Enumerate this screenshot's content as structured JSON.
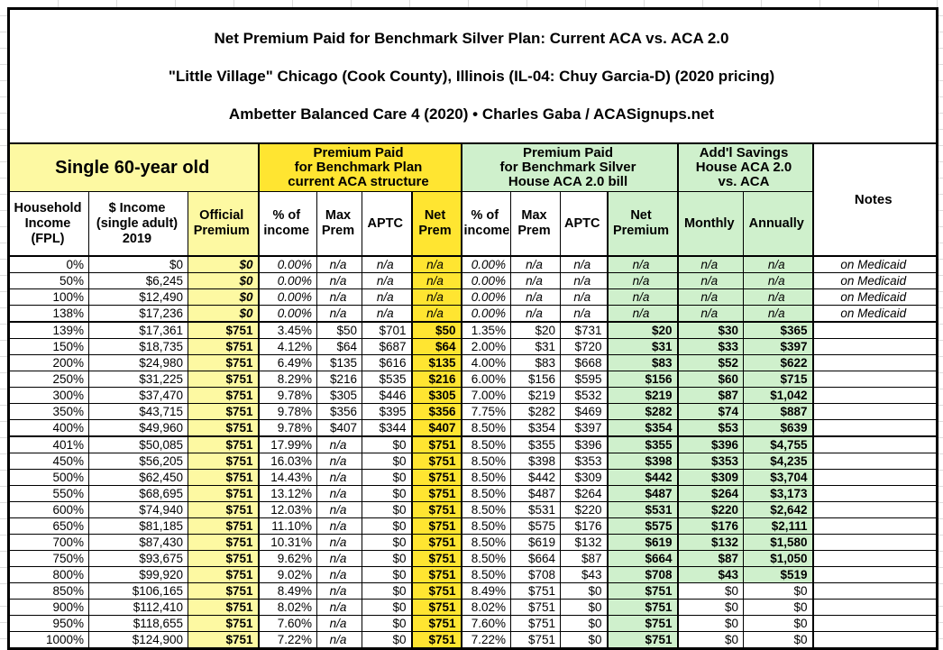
{
  "title": {
    "line1": "Net Premium Paid for Benchmark Silver Plan: Current ACA vs. ACA 2.0",
    "line2": "\"Little Village\" Chicago (Cook County), Illinois (IL-04: Chuy Garcia-D) (2020 pricing)",
    "line3": "Ambetter Balanced Care 4 (2020) • Charles Gaba / ACASignups.net"
  },
  "colors": {
    "pale_yellow": "#fdf9a2",
    "bright_yellow": "#ffe531",
    "pale_green": "#cff0cc",
    "border": "#000000"
  },
  "header": {
    "group_subject": "Single 60-year old",
    "group_aca": "Premium Paid\nfor Benchmark Plan\ncurrent ACA structure",
    "group_aca2": "Premium Paid\nfor Benchmark Silver\nHouse ACA 2.0 bill",
    "group_savings": "Add'l Savings\nHouse ACA 2.0\nvs. ACA",
    "notes_label": "Notes",
    "col_fpl": "Household\nIncome\n(FPL)",
    "col_income": "$ Income\n(single adult)\n2019",
    "col_official": "Official\nPremium",
    "col_pct_income": "% of\nincome",
    "col_max_prem": "Max\nPrem",
    "col_aptc": "APTC",
    "col_net_prem": "Net\nPrem",
    "col_net_premium": "Net\nPremium",
    "col_monthly": "Monthly",
    "col_annually": "Annually"
  },
  "rows": [
    {
      "fpl": "0%",
      "income": "$0",
      "official": "$0",
      "aca_pct": "0.00%",
      "aca_max": "n/a",
      "aca_aptc": "n/a",
      "aca_net": "n/a",
      "aca2_pct": "0.00%",
      "aca2_max": "n/a",
      "aca2_aptc": "n/a",
      "aca2_net": "n/a",
      "monthly": "n/a",
      "annually": "n/a",
      "note": "on Medicaid",
      "medicaid": true,
      "savings_plain": false
    },
    {
      "fpl": "50%",
      "income": "$6,245",
      "official": "$0",
      "aca_pct": "0.00%",
      "aca_max": "n/a",
      "aca_aptc": "n/a",
      "aca_net": "n/a",
      "aca2_pct": "0.00%",
      "aca2_max": "n/a",
      "aca2_aptc": "n/a",
      "aca2_net": "n/a",
      "monthly": "n/a",
      "annually": "n/a",
      "note": "on Medicaid",
      "medicaid": true,
      "savings_plain": false
    },
    {
      "fpl": "100%",
      "income": "$12,490",
      "official": "$0",
      "aca_pct": "0.00%",
      "aca_max": "n/a",
      "aca_aptc": "n/a",
      "aca_net": "n/a",
      "aca2_pct": "0.00%",
      "aca2_max": "n/a",
      "aca2_aptc": "n/a",
      "aca2_net": "n/a",
      "monthly": "n/a",
      "annually": "n/a",
      "note": "on Medicaid",
      "medicaid": true,
      "savings_plain": false
    },
    {
      "fpl": "138%",
      "income": "$17,236",
      "official": "$0",
      "aca_pct": "0.00%",
      "aca_max": "n/a",
      "aca_aptc": "n/a",
      "aca_net": "n/a",
      "aca2_pct": "0.00%",
      "aca2_max": "n/a",
      "aca2_aptc": "n/a",
      "aca2_net": "n/a",
      "monthly": "n/a",
      "annually": "n/a",
      "note": "on Medicaid",
      "medicaid": true,
      "savings_plain": false
    },
    {
      "fpl": "139%",
      "income": "$17,361",
      "official": "$751",
      "aca_pct": "3.45%",
      "aca_max": "$50",
      "aca_aptc": "$701",
      "aca_net": "$50",
      "aca2_pct": "1.35%",
      "aca2_max": "$20",
      "aca2_aptc": "$731",
      "aca2_net": "$20",
      "monthly": "$30",
      "annually": "$365",
      "note": "",
      "medicaid": false,
      "savings_plain": false
    },
    {
      "fpl": "150%",
      "income": "$18,735",
      "official": "$751",
      "aca_pct": "4.12%",
      "aca_max": "$64",
      "aca_aptc": "$687",
      "aca_net": "$64",
      "aca2_pct": "2.00%",
      "aca2_max": "$31",
      "aca2_aptc": "$720",
      "aca2_net": "$31",
      "monthly": "$33",
      "annually": "$397",
      "note": "",
      "medicaid": false,
      "savings_plain": false
    },
    {
      "fpl": "200%",
      "income": "$24,980",
      "official": "$751",
      "aca_pct": "6.49%",
      "aca_max": "$135",
      "aca_aptc": "$616",
      "aca_net": "$135",
      "aca2_pct": "4.00%",
      "aca2_max": "$83",
      "aca2_aptc": "$668",
      "aca2_net": "$83",
      "monthly": "$52",
      "annually": "$622",
      "note": "",
      "medicaid": false,
      "savings_plain": false
    },
    {
      "fpl": "250%",
      "income": "$31,225",
      "official": "$751",
      "aca_pct": "8.29%",
      "aca_max": "$216",
      "aca_aptc": "$535",
      "aca_net": "$216",
      "aca2_pct": "6.00%",
      "aca2_max": "$156",
      "aca2_aptc": "$595",
      "aca2_net": "$156",
      "monthly": "$60",
      "annually": "$715",
      "note": "",
      "medicaid": false,
      "savings_plain": false
    },
    {
      "fpl": "300%",
      "income": "$37,470",
      "official": "$751",
      "aca_pct": "9.78%",
      "aca_max": "$305",
      "aca_aptc": "$446",
      "aca_net": "$305",
      "aca2_pct": "7.00%",
      "aca2_max": "$219",
      "aca2_aptc": "$532",
      "aca2_net": "$219",
      "monthly": "$87",
      "annually": "$1,042",
      "note": "",
      "medicaid": false,
      "savings_plain": false
    },
    {
      "fpl": "350%",
      "income": "$43,715",
      "official": "$751",
      "aca_pct": "9.78%",
      "aca_max": "$356",
      "aca_aptc": "$395",
      "aca_net": "$356",
      "aca2_pct": "7.75%",
      "aca2_max": "$282",
      "aca2_aptc": "$469",
      "aca2_net": "$282",
      "monthly": "$74",
      "annually": "$887",
      "note": "",
      "medicaid": false,
      "savings_plain": false
    },
    {
      "fpl": "400%",
      "income": "$49,960",
      "official": "$751",
      "aca_pct": "9.78%",
      "aca_max": "$407",
      "aca_aptc": "$344",
      "aca_net": "$407",
      "aca2_pct": "8.50%",
      "aca2_max": "$354",
      "aca2_aptc": "$397",
      "aca2_net": "$354",
      "monthly": "$53",
      "annually": "$639",
      "note": "",
      "medicaid": false,
      "savings_plain": false
    },
    {
      "fpl": "401%",
      "income": "$50,085",
      "official": "$751",
      "aca_pct": "17.99%",
      "aca_max": "n/a",
      "aca_aptc": "$0",
      "aca_net": "$751",
      "aca2_pct": "8.50%",
      "aca2_max": "$355",
      "aca2_aptc": "$396",
      "aca2_net": "$355",
      "monthly": "$396",
      "annually": "$4,755",
      "note": "",
      "medicaid": false,
      "savings_plain": false
    },
    {
      "fpl": "450%",
      "income": "$56,205",
      "official": "$751",
      "aca_pct": "16.03%",
      "aca_max": "n/a",
      "aca_aptc": "$0",
      "aca_net": "$751",
      "aca2_pct": "8.50%",
      "aca2_max": "$398",
      "aca2_aptc": "$353",
      "aca2_net": "$398",
      "monthly": "$353",
      "annually": "$4,235",
      "note": "",
      "medicaid": false,
      "savings_plain": false
    },
    {
      "fpl": "500%",
      "income": "$62,450",
      "official": "$751",
      "aca_pct": "14.43%",
      "aca_max": "n/a",
      "aca_aptc": "$0",
      "aca_net": "$751",
      "aca2_pct": "8.50%",
      "aca2_max": "$442",
      "aca2_aptc": "$309",
      "aca2_net": "$442",
      "monthly": "$309",
      "annually": "$3,704",
      "note": "",
      "medicaid": false,
      "savings_plain": false
    },
    {
      "fpl": "550%",
      "income": "$68,695",
      "official": "$751",
      "aca_pct": "13.12%",
      "aca_max": "n/a",
      "aca_aptc": "$0",
      "aca_net": "$751",
      "aca2_pct": "8.50%",
      "aca2_max": "$487",
      "aca2_aptc": "$264",
      "aca2_net": "$487",
      "monthly": "$264",
      "annually": "$3,173",
      "note": "",
      "medicaid": false,
      "savings_plain": false
    },
    {
      "fpl": "600%",
      "income": "$74,940",
      "official": "$751",
      "aca_pct": "12.03%",
      "aca_max": "n/a",
      "aca_aptc": "$0",
      "aca_net": "$751",
      "aca2_pct": "8.50%",
      "aca2_max": "$531",
      "aca2_aptc": "$220",
      "aca2_net": "$531",
      "monthly": "$220",
      "annually": "$2,642",
      "note": "",
      "medicaid": false,
      "savings_plain": false
    },
    {
      "fpl": "650%",
      "income": "$81,185",
      "official": "$751",
      "aca_pct": "11.10%",
      "aca_max": "n/a",
      "aca_aptc": "$0",
      "aca_net": "$751",
      "aca2_pct": "8.50%",
      "aca2_max": "$575",
      "aca2_aptc": "$176",
      "aca2_net": "$575",
      "monthly": "$176",
      "annually": "$2,111",
      "note": "",
      "medicaid": false,
      "savings_plain": false
    },
    {
      "fpl": "700%",
      "income": "$87,430",
      "official": "$751",
      "aca_pct": "10.31%",
      "aca_max": "n/a",
      "aca_aptc": "$0",
      "aca_net": "$751",
      "aca2_pct": "8.50%",
      "aca2_max": "$619",
      "aca2_aptc": "$132",
      "aca2_net": "$619",
      "monthly": "$132",
      "annually": "$1,580",
      "note": "",
      "medicaid": false,
      "savings_plain": false
    },
    {
      "fpl": "750%",
      "income": "$93,675",
      "official": "$751",
      "aca_pct": "9.62%",
      "aca_max": "n/a",
      "aca_aptc": "$0",
      "aca_net": "$751",
      "aca2_pct": "8.50%",
      "aca2_max": "$664",
      "aca2_aptc": "$87",
      "aca2_net": "$664",
      "monthly": "$87",
      "annually": "$1,050",
      "note": "",
      "medicaid": false,
      "savings_plain": false
    },
    {
      "fpl": "800%",
      "income": "$99,920",
      "official": "$751",
      "aca_pct": "9.02%",
      "aca_max": "n/a",
      "aca_aptc": "$0",
      "aca_net": "$751",
      "aca2_pct": "8.50%",
      "aca2_max": "$708",
      "aca2_aptc": "$43",
      "aca2_net": "$708",
      "monthly": "$43",
      "annually": "$519",
      "note": "",
      "medicaid": false,
      "savings_plain": false
    },
    {
      "fpl": "850%",
      "income": "$106,165",
      "official": "$751",
      "aca_pct": "8.49%",
      "aca_max": "n/a",
      "aca_aptc": "$0",
      "aca_net": "$751",
      "aca2_pct": "8.49%",
      "aca2_max": "$751",
      "aca2_aptc": "$0",
      "aca2_net": "$751",
      "monthly": "$0",
      "annually": "$0",
      "note": "",
      "medicaid": false,
      "savings_plain": true
    },
    {
      "fpl": "900%",
      "income": "$112,410",
      "official": "$751",
      "aca_pct": "8.02%",
      "aca_max": "n/a",
      "aca_aptc": "$0",
      "aca_net": "$751",
      "aca2_pct": "8.02%",
      "aca2_max": "$751",
      "aca2_aptc": "$0",
      "aca2_net": "$751",
      "monthly": "$0",
      "annually": "$0",
      "note": "",
      "medicaid": false,
      "savings_plain": true
    },
    {
      "fpl": "950%",
      "income": "$118,655",
      "official": "$751",
      "aca_pct": "7.60%",
      "aca_max": "n/a",
      "aca_aptc": "$0",
      "aca_net": "$751",
      "aca2_pct": "7.60%",
      "aca2_max": "$751",
      "aca2_aptc": "$0",
      "aca2_net": "$751",
      "monthly": "$0",
      "annually": "$0",
      "note": "",
      "medicaid": false,
      "savings_plain": true
    },
    {
      "fpl": "1000%",
      "income": "$124,900",
      "official": "$751",
      "aca_pct": "7.22%",
      "aca_max": "n/a",
      "aca_aptc": "$0",
      "aca_net": "$751",
      "aca2_pct": "7.22%",
      "aca2_max": "$751",
      "aca2_aptc": "$0",
      "aca2_net": "$751",
      "monthly": "$0",
      "annually": "$0",
      "note": "",
      "medicaid": false,
      "savings_plain": true
    }
  ]
}
